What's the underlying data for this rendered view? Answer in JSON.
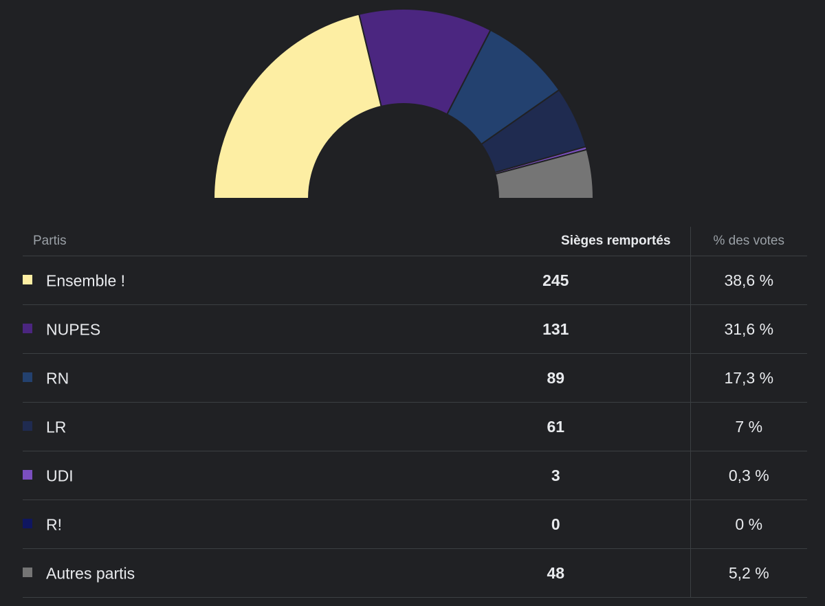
{
  "table": {
    "headers": {
      "party": "Partis",
      "seats": "Sièges remportés",
      "votes": "% des votes"
    },
    "rows": [
      {
        "party": "Ensemble !",
        "seats": "245",
        "votes": "38,6 %",
        "color": "#fdeea3"
      },
      {
        "party": "NUPES",
        "seats": "131",
        "votes": "31,6 %",
        "color": "#4b2680"
      },
      {
        "party": "RN",
        "seats": "89",
        "votes": "17,3 %",
        "color": "#23416f"
      },
      {
        "party": "LR",
        "seats": "61",
        "votes": "7 %",
        "color": "#1f2b50"
      },
      {
        "party": "UDI",
        "seats": "3",
        "votes": "0,3 %",
        "color": "#7b4fbf"
      },
      {
        "party": "R!",
        "seats": "0",
        "votes": "0 %",
        "color": "#0f1660"
      },
      {
        "party": "Autres partis",
        "seats": "48",
        "votes": "5,2 %",
        "color": "#757575"
      }
    ]
  },
  "chart_data": {
    "type": "pie",
    "variant": "semi-donut",
    "categories": [
      "Ensemble !",
      "NUPES",
      "RN",
      "LR",
      "UDI",
      "R!",
      "Autres partis"
    ],
    "values": [
      245,
      131,
      89,
      61,
      3,
      0,
      48
    ],
    "colors": [
      "#fdeea3",
      "#4b2680",
      "#23416f",
      "#1f2b50",
      "#7b4fbf",
      "#0f1660",
      "#757575"
    ],
    "title": ""
  }
}
